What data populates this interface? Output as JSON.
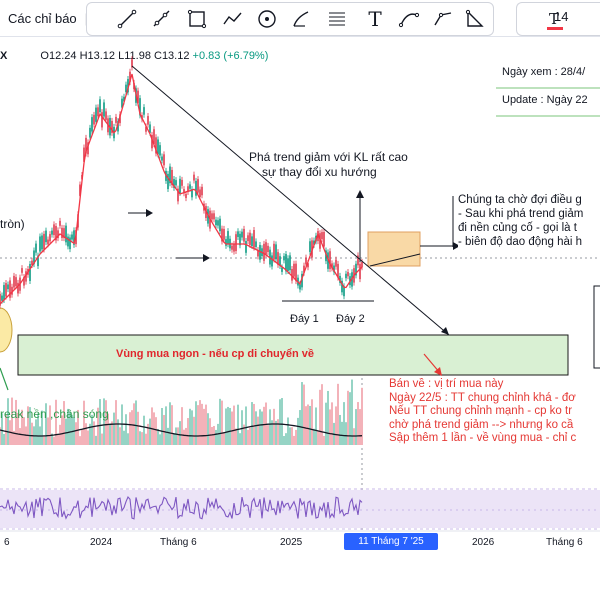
{
  "toolbar": {
    "indicators_label": "Các chỉ báo",
    "separator": "|",
    "font_size": "14",
    "text_tool": "T",
    "tools": [
      "trend-line-icon",
      "ray-icon",
      "rectangle-icon",
      "path-icon",
      "circle-icon",
      "brush-icon",
      "fib-icon",
      "text-icon",
      "curve-icon",
      "polyline-icon",
      "triangle-icon"
    ]
  },
  "legend": {
    "symbol": "X",
    "open": "O12.24",
    "high": "H13.12",
    "low": "L11.98",
    "close": "C13.12",
    "change": "+0.83 (+6.79%)"
  },
  "info": {
    "view_date": "Ngày xem : 28/4/",
    "update": "Update : Ngày 22"
  },
  "annotations": {
    "trend_break": "Phá trend giảm với KL rất cao",
    "trend_change": "sự thay đổi xu hướng",
    "round": "tròn)",
    "day1": "Đáy 1",
    "day2": "Đáy 2",
    "buy_zone": "Vùng mua ngon  - nếu cp di chuyển về",
    "break_base": "reak nền ,chân sóng",
    "wait_notes": [
      "Chúng ta chờ đợi điều g",
      "- Sau khi phá trend giảm",
      "đi nền củng cố - gọi là t",
      "- biên độ dao động hài h"
    ],
    "red_notes": [
      "Bán về : vị trí mua này",
      "Ngày 22/5 : TT chung chỉnh khá - đơ",
      "Nếu TT chung chỉnh mạnh - cp ko tr",
      "chờ phá trend giảm --> nhưng ko cầ",
      "Sập thêm 1 lần - về vùng mua - chỉ c"
    ]
  },
  "x_axis": {
    "labels": [
      "6",
      "2024",
      "Tháng 6",
      "2025",
      "2026",
      "Tháng 6"
    ],
    "highlight": "11 Tháng 7 '25"
  },
  "colors": {
    "candle_up": "#e0364a",
    "ma_red": "#f23645",
    "trendline": "#131722",
    "buy_zone_fill": "#d9f0d3",
    "buy_zone_text": "#e0262c",
    "orange_box": "#f9d9a6",
    "rsi_band": "#ece4f7",
    "rsi_line": "#7e57c2",
    "highlight": "#2962ff",
    "annotation_red": "#e53935",
    "annotation_green": "#2e9d4f"
  }
}
